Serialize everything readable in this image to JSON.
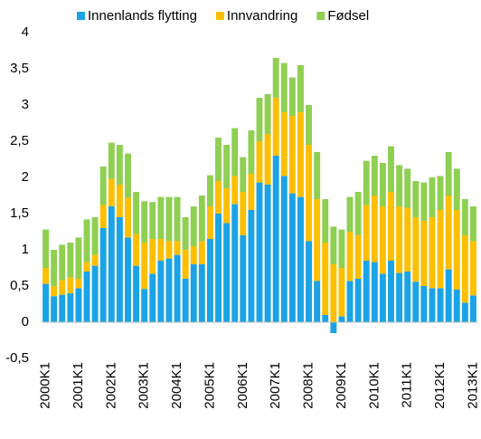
{
  "chart_data": {
    "type": "bar",
    "stacked": true,
    "categories": [
      "2000K1",
      null,
      null,
      null,
      "2001K1",
      null,
      null,
      null,
      "2002K1",
      null,
      null,
      null,
      "2003K1",
      null,
      null,
      null,
      "2004K1",
      null,
      null,
      null,
      "2005K1",
      null,
      null,
      null,
      "2006K1",
      null,
      null,
      null,
      "2007K1",
      null,
      null,
      null,
      "2008K1",
      null,
      null,
      null,
      "2009K1",
      null,
      null,
      null,
      "2010K1",
      null,
      null,
      null,
      "2011K1",
      null,
      null,
      null,
      "2012K1",
      null,
      null,
      null,
      "2013K1"
    ],
    "series": [
      {
        "name": "Innenlands flytting",
        "color": "#1aa3e6",
        "values": [
          0.53,
          0.36,
          0.38,
          0.4,
          0.47,
          0.7,
          0.78,
          1.3,
          1.6,
          1.45,
          1.17,
          0.78,
          0.46,
          0.67,
          0.85,
          0.88,
          0.93,
          0.6,
          0.8,
          0.8,
          1.15,
          1.5,
          1.37,
          1.63,
          1.2,
          1.55,
          1.93,
          1.9,
          2.3,
          2.02,
          1.78,
          1.73,
          1.12,
          0.57,
          0.1,
          -0.15,
          0.08,
          0.57,
          0.6,
          0.85,
          0.83,
          0.67,
          0.85,
          0.68,
          0.7,
          0.56,
          0.5,
          0.47,
          0.47,
          0.73,
          0.45,
          0.27,
          0.37
        ]
      },
      {
        "name": "Innvandring",
        "color": "#fdbf00",
        "values": [
          0.22,
          0.14,
          0.2,
          0.22,
          0.13,
          0.13,
          0.15,
          0.32,
          0.38,
          0.45,
          0.55,
          0.44,
          0.64,
          0.48,
          0.3,
          0.24,
          0.19,
          0.4,
          0.25,
          0.32,
          0.45,
          0.45,
          0.48,
          0.39,
          0.6,
          0.5,
          0.57,
          0.7,
          0.8,
          0.88,
          1.07,
          1.17,
          1.33,
          1.13,
          1.0,
          0.8,
          0.67,
          0.68,
          0.6,
          0.77,
          0.92,
          0.93,
          0.95,
          0.92,
          0.88,
          0.89,
          0.9,
          0.98,
          1.08,
          1.02,
          1.1,
          0.93,
          0.75
        ]
      },
      {
        "name": "Fødsel",
        "color": "#8fcf52",
        "values": [
          0.53,
          0.5,
          0.49,
          0.48,
          0.57,
          0.59,
          0.52,
          0.53,
          0.5,
          0.55,
          0.61,
          0.58,
          0.57,
          0.51,
          0.58,
          0.61,
          0.61,
          0.45,
          0.55,
          0.63,
          0.43,
          0.6,
          0.6,
          0.66,
          0.48,
          0.6,
          0.6,
          0.55,
          0.55,
          0.68,
          0.53,
          0.65,
          0.55,
          0.65,
          0.6,
          0.52,
          0.53,
          0.48,
          0.6,
          0.61,
          0.55,
          0.6,
          0.63,
          0.57,
          0.54,
          0.5,
          0.53,
          0.55,
          0.47,
          0.6,
          0.57,
          0.5,
          0.48
        ]
      }
    ],
    "ylim": [
      -0.5,
      4
    ],
    "yticks": [
      {
        "value": -0.5,
        "label": "-0,5"
      },
      0,
      {
        "value": 0.5,
        "label": "0,5"
      },
      1,
      {
        "value": 1.5,
        "label": "1,5"
      },
      2,
      {
        "value": 2.5,
        "label": "2,5"
      },
      3,
      {
        "value": 3.5,
        "label": "3,5"
      },
      4
    ],
    "grid": false,
    "legend": "top"
  }
}
